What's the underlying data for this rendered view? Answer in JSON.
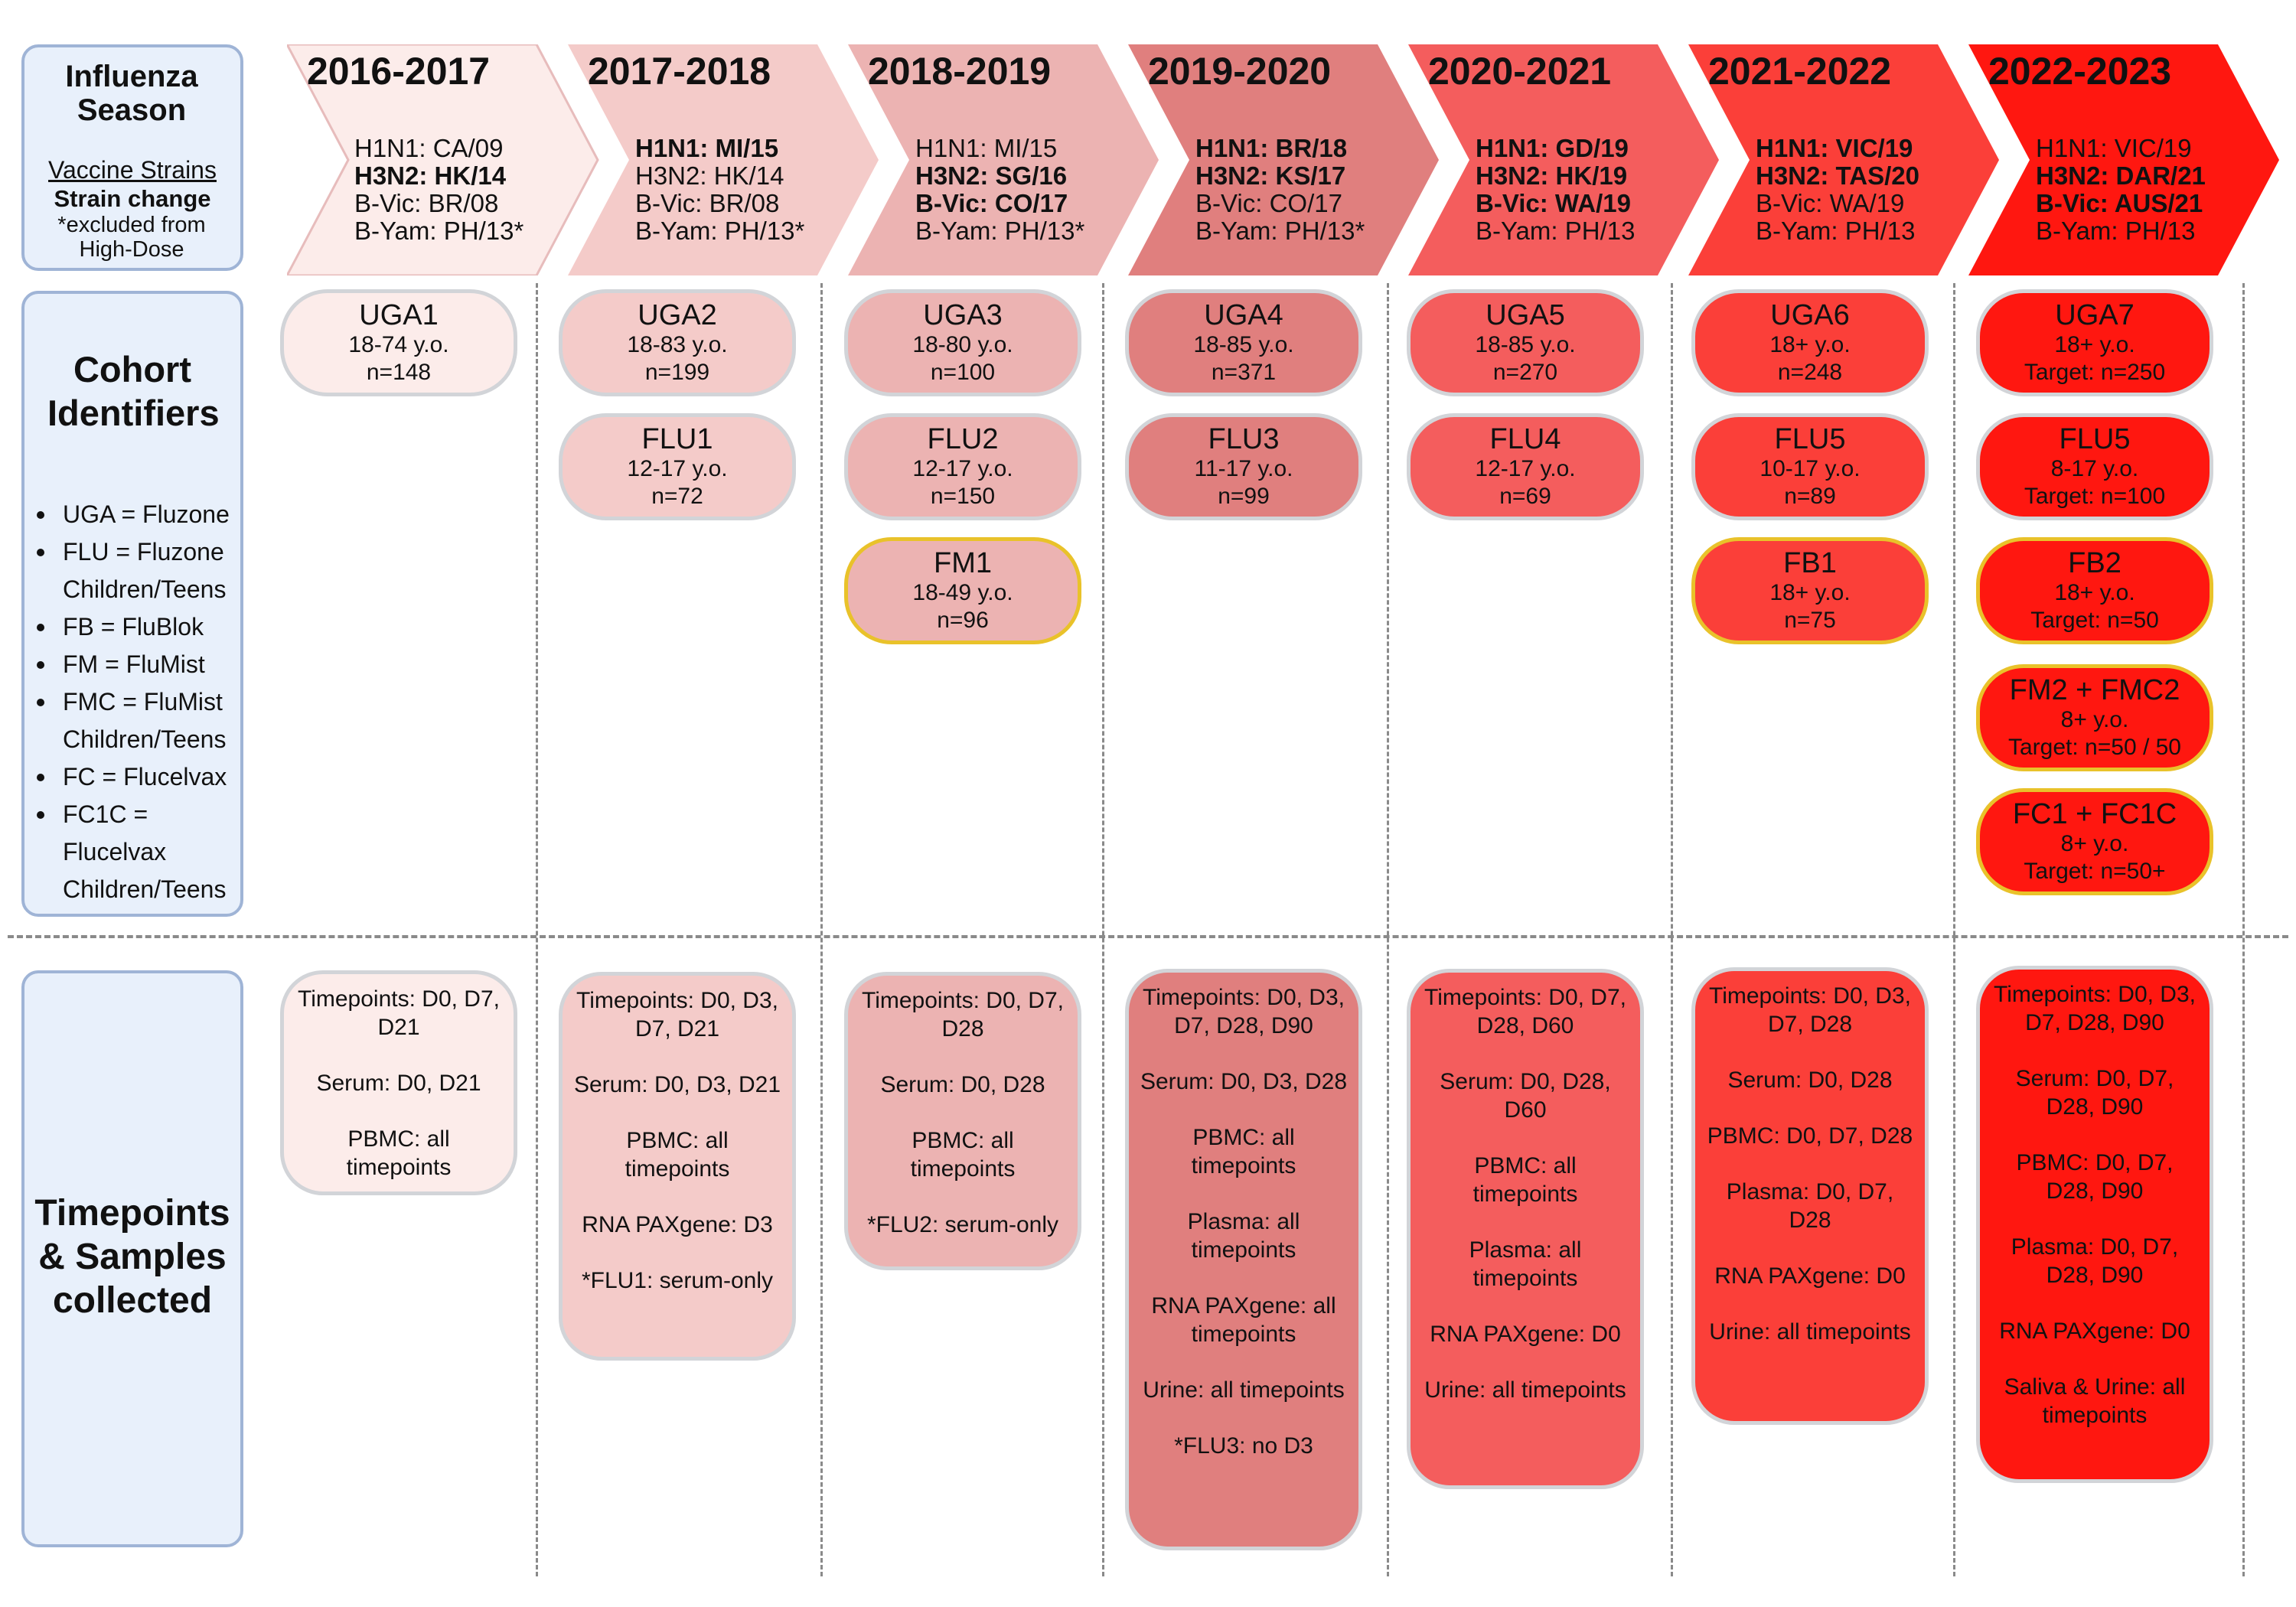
{
  "sidebar": {
    "season_title": "Influenza Season",
    "vaccine_strains": "Vaccine Strains",
    "strain_change": "Strain change",
    "excluded_note": "*excluded from High-Dose",
    "cohort_title": "Cohort Identifiers",
    "legend": [
      "UGA = Fluzone",
      "FLU = Fluzone Children/Teens",
      "FB = FluBlok",
      "FM = FluMist",
      "FMC = FluMist Children/Teens",
      "FC = Flucelvax",
      "FC1C = Flucelvax Children/Teens"
    ],
    "samples_title": "Timepoints & Samples collected"
  },
  "seasons": [
    {
      "label": "2016-2017",
      "color": "#fcecea",
      "strains": [
        {
          "text": "H1N1: CA/09",
          "bold": false
        },
        {
          "text": "H3N2: HK/14",
          "bold": true
        },
        {
          "text": "B-Vic: BR/08",
          "bold": false
        },
        {
          "text": "B-Yam: PH/13*",
          "bold": false
        }
      ],
      "cohorts": [
        {
          "name": "UGA1",
          "lines": [
            "18-74 y.o.",
            "n=148"
          ],
          "gold": false
        }
      ],
      "samples": [
        "Timepoints: D0, D7, D21",
        "Serum: D0, D21",
        "PBMC: all timepoints"
      ]
    },
    {
      "label": "2017-2018",
      "color": "#f4cbc9",
      "strains": [
        {
          "text": "H1N1: MI/15",
          "bold": true
        },
        {
          "text": "H3N2: HK/14",
          "bold": false
        },
        {
          "text": "B-Vic: BR/08",
          "bold": false
        },
        {
          "text": "B-Yam: PH/13*",
          "bold": false
        }
      ],
      "cohorts": [
        {
          "name": "UGA2",
          "lines": [
            "18-83 y.o.",
            "n=199"
          ],
          "gold": false
        },
        {
          "name": "FLU1",
          "lines": [
            "12-17 y.o.",
            "n=72"
          ],
          "gold": false
        }
      ],
      "samples": [
        "Timepoints: D0, D3, D7, D21",
        "Serum: D0, D3, D21",
        "PBMC: all timepoints",
        "RNA PAXgene: D3",
        "*FLU1: serum-only"
      ]
    },
    {
      "label": "2018-2019",
      "color": "#ecb3b2",
      "strains": [
        {
          "text": "H1N1: MI/15",
          "bold": false
        },
        {
          "text": "H3N2: SG/16",
          "bold": true
        },
        {
          "text": "B-Vic: CO/17",
          "bold": true
        },
        {
          "text": "B-Yam: PH/13*",
          "bold": false
        }
      ],
      "cohorts": [
        {
          "name": "UGA3",
          "lines": [
            "18-80 y.o.",
            "n=100"
          ],
          "gold": false
        },
        {
          "name": "FLU2",
          "lines": [
            "12-17 y.o.",
            "n=150"
          ],
          "gold": false
        },
        {
          "name": "FM1",
          "lines": [
            "18-49 y.o.",
            "n=96"
          ],
          "gold": true
        }
      ],
      "samples": [
        "Timepoints: D0, D7, D28",
        "Serum: D0, D28",
        "PBMC: all timepoints",
        "*FLU2: serum-only"
      ]
    },
    {
      "label": "2019-2020",
      "color": "#e07f7e",
      "strains": [
        {
          "text": "H1N1: BR/18",
          "bold": true
        },
        {
          "text": "H3N2: KS/17",
          "bold": true
        },
        {
          "text": "B-Vic: CO/17",
          "bold": false
        },
        {
          "text": "B-Yam: PH/13*",
          "bold": false
        }
      ],
      "cohorts": [
        {
          "name": "UGA4",
          "lines": [
            "18-85 y.o.",
            "n=371"
          ],
          "gold": false
        },
        {
          "name": "FLU3",
          "lines": [
            "11-17 y.o.",
            "n=99"
          ],
          "gold": false
        }
      ],
      "samples": [
        "Timepoints: D0, D3, D7, D28, D90",
        "Serum: D0, D3, D28",
        "PBMC: all timepoints",
        "Plasma: all timepoints",
        "RNA PAXgene: all timepoints",
        "Urine: all timepoints",
        "*FLU3: no D3"
      ]
    },
    {
      "label": "2020-2021",
      "color": "#f45d5d",
      "strains": [
        {
          "text": "H1N1: GD/19",
          "bold": true
        },
        {
          "text": "H3N2: HK/19",
          "bold": true
        },
        {
          "text": "B-Vic: WA/19",
          "bold": true
        },
        {
          "text": "B-Yam: PH/13",
          "bold": false
        }
      ],
      "cohorts": [
        {
          "name": "UGA5",
          "lines": [
            "18-85 y.o.",
            "n=270"
          ],
          "gold": false
        },
        {
          "name": "FLU4",
          "lines": [
            "12-17 y.o.",
            "n=69"
          ],
          "gold": false
        }
      ],
      "samples": [
        "Timepoints: D0, D7, D28, D60",
        "Serum: D0, D28, D60",
        "PBMC: all timepoints",
        "Plasma: all timepoints",
        "RNA PAXgene: D0",
        "Urine: all timepoints"
      ]
    },
    {
      "label": "2021-2022",
      "color": "#fb3f39",
      "strains": [
        {
          "text": "H1N1: VIC/19",
          "bold": true
        },
        {
          "text": "H3N2: TAS/20",
          "bold": true
        },
        {
          "text": "B-Vic: WA/19",
          "bold": false
        },
        {
          "text": "B-Yam: PH/13",
          "bold": false
        }
      ],
      "cohorts": [
        {
          "name": "UGA6",
          "lines": [
            "18+ y.o.",
            "n=248"
          ],
          "gold": false
        },
        {
          "name": "FLU5",
          "lines": [
            "10-17 y.o.",
            "n=89"
          ],
          "gold": false
        },
        {
          "name": "FB1",
          "lines": [
            "18+ y.o.",
            "n=75"
          ],
          "gold": true
        }
      ],
      "samples": [
        "Timepoints: D0, D3, D7, D28",
        "Serum: D0, D28",
        "PBMC: D0, D7, D28",
        "Plasma: D0, D7, D28",
        "RNA PAXgene: D0",
        "Urine: all timepoints"
      ]
    },
    {
      "label": "2022-2023",
      "color": "#ff1710",
      "strains": [
        {
          "text": "H1N1: VIC/19",
          "bold": false
        },
        {
          "text": "H3N2: DAR/21",
          "bold": true
        },
        {
          "text": "B-Vic: AUS/21",
          "bold": true
        },
        {
          "text": "B-Yam: PH/13",
          "bold": false
        }
      ],
      "cohorts": [
        {
          "name": "UGA7",
          "lines": [
            "18+ y.o.",
            "Target: n=250"
          ],
          "gold": false
        },
        {
          "name": "FLU5",
          "lines": [
            "8-17 y.o.",
            "Target: n=100"
          ],
          "gold": false
        },
        {
          "name": "FB2",
          "lines": [
            "18+ y.o.",
            "Target: n=50"
          ],
          "gold": true
        },
        {
          "name": "FM2 + FMC2",
          "lines": [
            "8+ y.o.",
            "Target: n=50 / 50"
          ],
          "gold": true
        },
        {
          "name": "FC1 + FC1C",
          "lines": [
            "8+ y.o.",
            "Target: n=50+"
          ],
          "gold": true
        }
      ],
      "samples": [
        "Timepoints: D0, D3, D7, D28, D90",
        "Serum: D0, D7, D28, D90",
        "PBMC: D0, D7, D28, D90",
        "Plasma: D0, D7, D28, D90",
        "RNA PAXgene: D0",
        "Saliva & Urine: all timepoints"
      ]
    }
  ]
}
